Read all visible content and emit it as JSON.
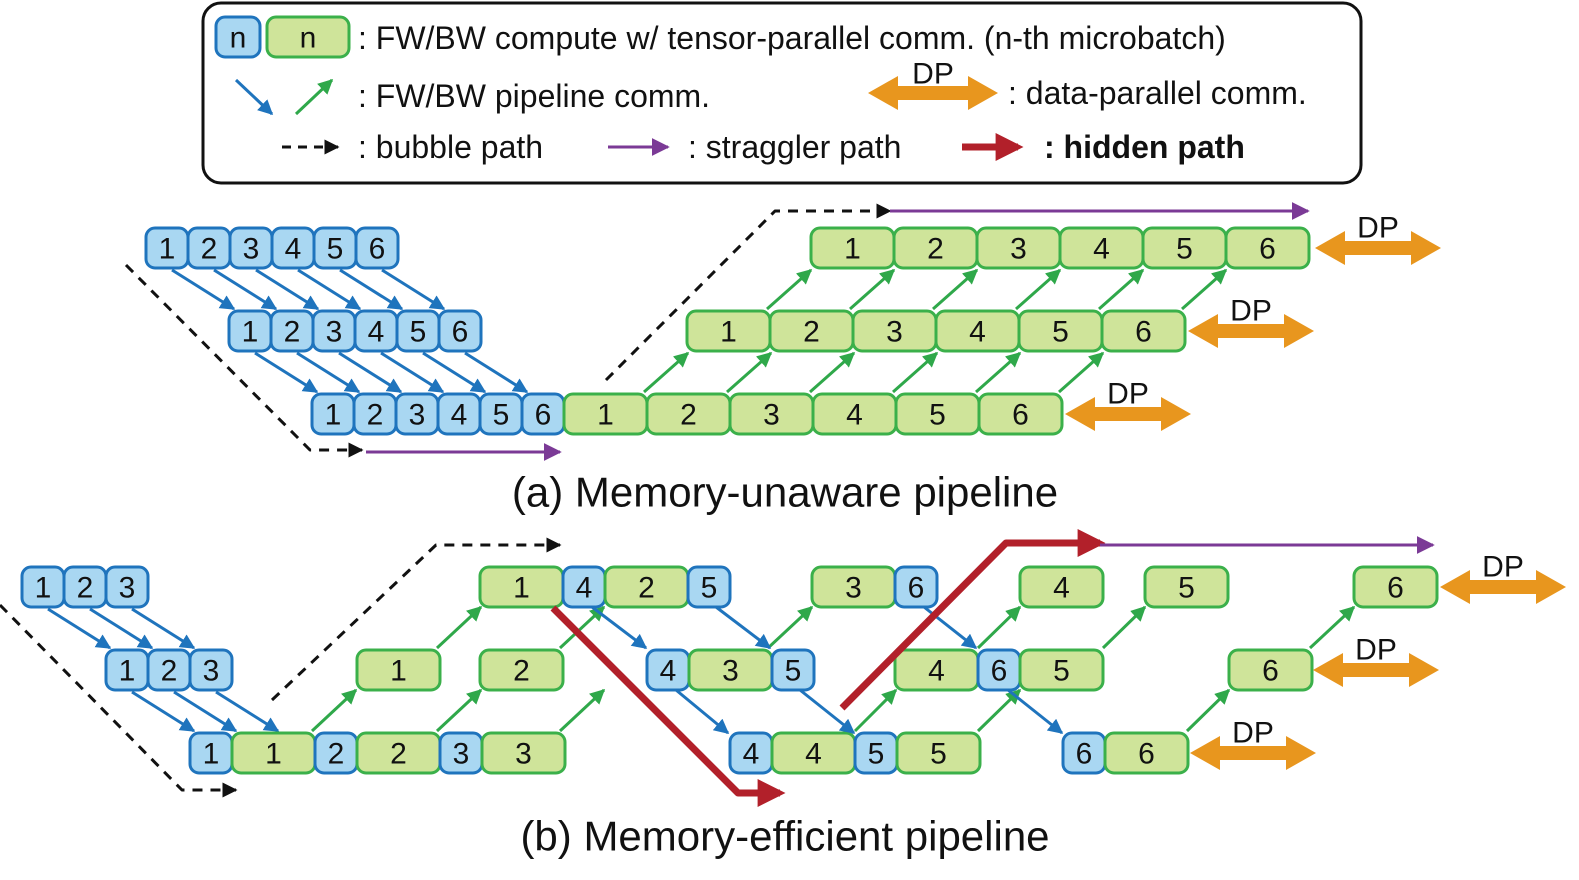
{
  "colors": {
    "fw_fill": "#a9d7f2",
    "fw_stroke": "#1f74bd",
    "bw_fill": "#cfe49a",
    "bw_stroke": "#3bb04a",
    "fw_comm": "#1f74bd",
    "bw_comm": "#2fa84a",
    "bubble": "#111111",
    "straggler": "#7b3a96",
    "hidden": "#b2202a",
    "dp": "#e8961e"
  },
  "legend": {
    "n_symbol": "n",
    "compute_text": ": FW/BW compute w/ tensor-parallel comm. (n-th microbatch)",
    "pipeline_text": ": FW/BW pipeline comm.",
    "dp_label": "DP",
    "dp_text": ": data-parallel comm.",
    "bubble_text": ": bubble path",
    "straggler_text": ": straggler path",
    "hidden_text": ": hidden path"
  },
  "diagram_a": {
    "caption": "(a) Memory-unaware pipeline",
    "dp_label": "DP",
    "stage1_fw": [
      "1",
      "2",
      "3",
      "4",
      "5",
      "6"
    ],
    "stage2_fw": [
      "1",
      "2",
      "3",
      "4",
      "5",
      "6"
    ],
    "stage3_fw": [
      "1",
      "2",
      "3",
      "4",
      "5",
      "6"
    ],
    "stage3_bw": [
      "1",
      "2",
      "3",
      "4",
      "5",
      "6"
    ],
    "stage2_bw": [
      "1",
      "2",
      "3",
      "4",
      "5",
      "6"
    ],
    "stage1_bw": [
      "1",
      "2",
      "3",
      "4",
      "5",
      "6"
    ]
  },
  "diagram_b": {
    "caption": "(b) Memory-efficient pipeline",
    "dp_label": "DP",
    "row1_fw": [
      "1",
      "2",
      "3"
    ],
    "row2_fw": [
      "1",
      "2",
      "3"
    ],
    "row3": [
      "1",
      "1",
      "2",
      "2",
      "3",
      "3"
    ],
    "row1_seq": [
      "1",
      "4",
      "2",
      "5",
      "3",
      "6",
      "4",
      "5",
      "6"
    ],
    "row2_seq": [
      "1",
      "2",
      "4",
      "3",
      "5",
      "4",
      "6",
      "5",
      "6"
    ],
    "row3_seq": [
      "4",
      "4",
      "5",
      "5",
      "6",
      "6"
    ]
  }
}
